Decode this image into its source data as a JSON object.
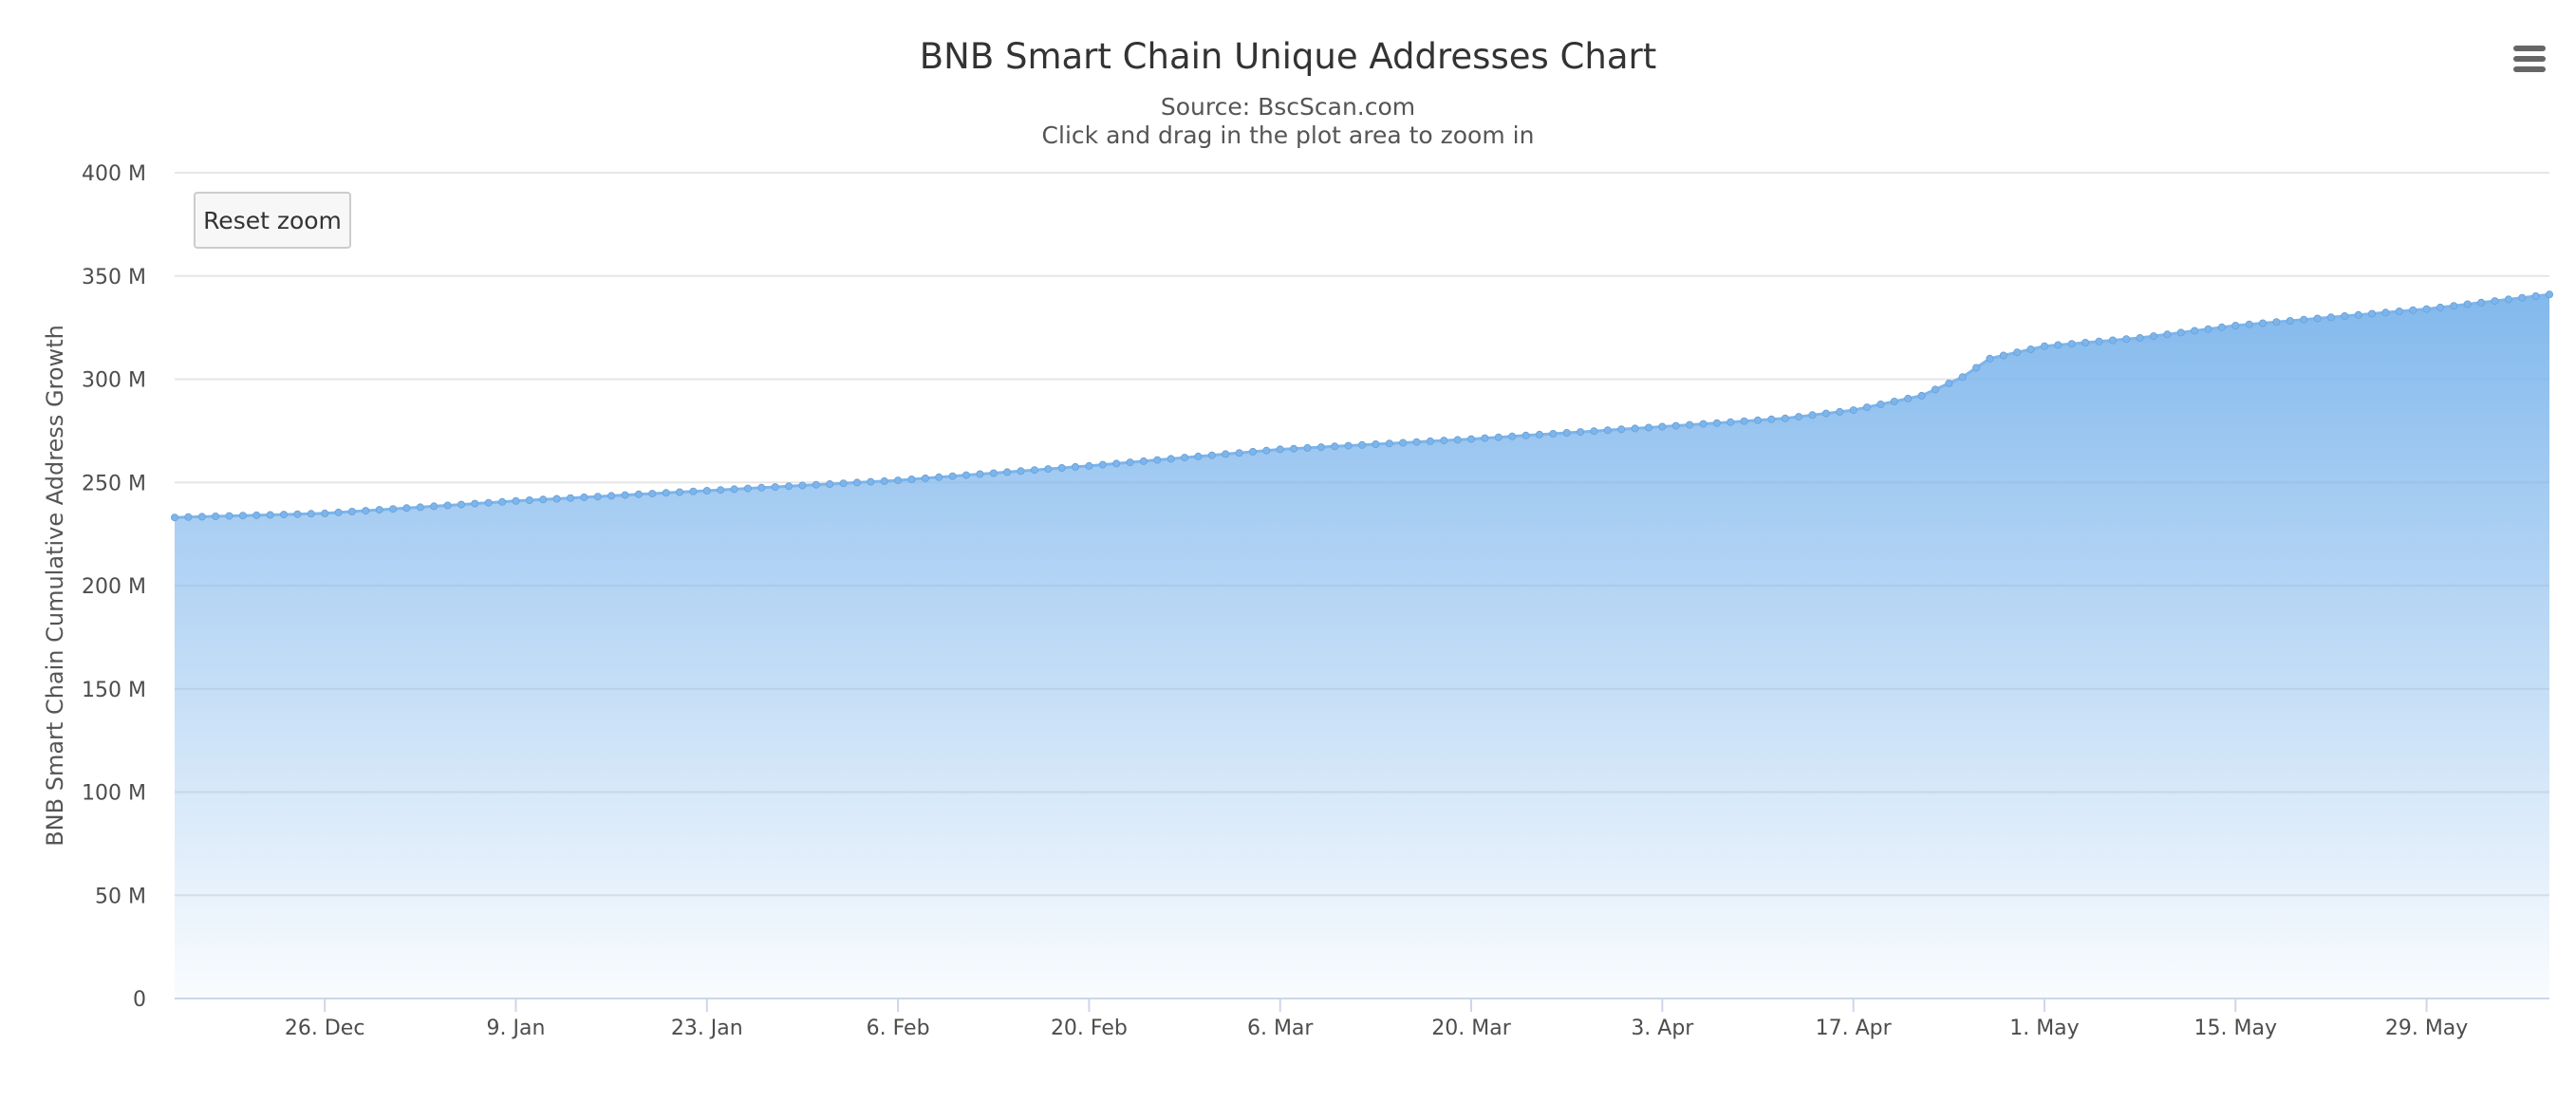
{
  "chart_data": {
    "type": "area",
    "title": "BNB Smart Chain Unique Addresses Chart",
    "subtitle_lines": [
      "Source: BscScan.com",
      "Click and drag in the plot area to zoom in"
    ],
    "ylabel": "BNB Smart Chain Cumulative Address Growth",
    "xlabel": "",
    "ylim": [
      0,
      400000000
    ],
    "y_ticks": [
      {
        "value": 0,
        "label": "0"
      },
      {
        "value": 50000000,
        "label": "50 M"
      },
      {
        "value": 100000000,
        "label": "100 M"
      },
      {
        "value": 150000000,
        "label": "150 M"
      },
      {
        "value": 200000000,
        "label": "200 M"
      },
      {
        "value": 250000000,
        "label": "250 M"
      },
      {
        "value": 300000000,
        "label": "300 M"
      },
      {
        "value": 350000000,
        "label": "350 M"
      },
      {
        "value": 400000000,
        "label": "400 M"
      }
    ],
    "x_range": [
      "2022-12-15",
      "2023-06-07"
    ],
    "x_ticks": [
      {
        "date": "2022-12-26",
        "label": "26. Dec"
      },
      {
        "date": "2023-01-09",
        "label": "9. Jan"
      },
      {
        "date": "2023-01-23",
        "label": "23. Jan"
      },
      {
        "date": "2023-02-06",
        "label": "6. Feb"
      },
      {
        "date": "2023-02-20",
        "label": "20. Feb"
      },
      {
        "date": "2023-03-06",
        "label": "6. Mar"
      },
      {
        "date": "2023-03-20",
        "label": "20. Mar"
      },
      {
        "date": "2023-04-03",
        "label": "3. Apr"
      },
      {
        "date": "2023-04-17",
        "label": "17. Apr"
      },
      {
        "date": "2023-05-01",
        "label": "1. May"
      },
      {
        "date": "2023-05-15",
        "label": "15. May"
      },
      {
        "date": "2023-05-29",
        "label": "29. May"
      }
    ],
    "grid": true,
    "legend": "none",
    "series": [
      {
        "color": "#7cb5ec",
        "points": [
          [
            "2022-12-15",
            233000000
          ],
          [
            "2022-12-26",
            235000000
          ],
          [
            "2023-01-09",
            241000000
          ],
          [
            "2023-01-23",
            246000000
          ],
          [
            "2023-02-06",
            251000000
          ],
          [
            "2023-02-20",
            258000000
          ],
          [
            "2023-03-06",
            266000000
          ],
          [
            "2023-03-20",
            271000000
          ],
          [
            "2023-04-03",
            277000000
          ],
          [
            "2023-04-12",
            281000000
          ],
          [
            "2023-04-17",
            285000000
          ],
          [
            "2023-04-22",
            292000000
          ],
          [
            "2023-04-25",
            301000000
          ],
          [
            "2023-04-27",
            310000000
          ],
          [
            "2023-05-01",
            316000000
          ],
          [
            "2023-05-08",
            320000000
          ],
          [
            "2023-05-15",
            326000000
          ],
          [
            "2023-05-22",
            330000000
          ],
          [
            "2023-05-29",
            334000000
          ],
          [
            "2023-06-07",
            341000000
          ]
        ]
      }
    ]
  },
  "controls": {
    "reset_zoom_label": "Reset zoom",
    "menu_icon": "hamburger-menu-icon"
  }
}
